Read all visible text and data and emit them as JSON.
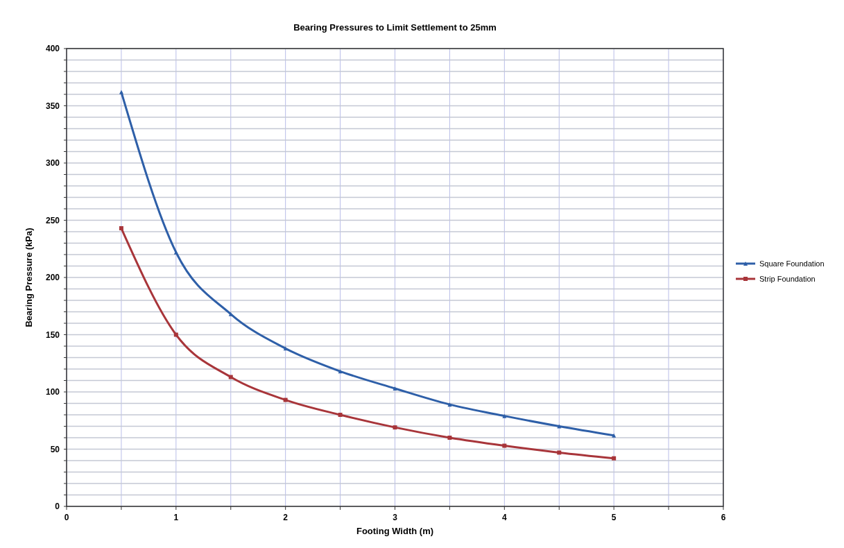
{
  "chart_data": {
    "type": "line",
    "title": "Bearing Pressures to Limit Settlement to 25mm",
    "xlabel": "Footing Width (m)",
    "ylabel": "Bearing Pressure (kPa)",
    "x": [
      0.5,
      1,
      1.5,
      2,
      2.5,
      3,
      3.5,
      4,
      4.5,
      5
    ],
    "series": [
      {
        "name": "Square Foundation",
        "color": "#2e5fa8",
        "marker": "triangle",
        "values": [
          362,
          222,
          168,
          138,
          118,
          103,
          89,
          79,
          70,
          62
        ]
      },
      {
        "name": "Strip Foundation",
        "color": "#a8353a",
        "marker": "square",
        "values": [
          243,
          150,
          113,
          93,
          80,
          69,
          60,
          53,
          47,
          42
        ]
      }
    ],
    "xlim": [
      0,
      6
    ],
    "xticks": [
      0,
      {
        "value": 0.5,
        "label": null
      },
      1,
      {
        "value": 1.5,
        "label": null
      },
      2,
      {
        "value": 2.5,
        "label": null
      },
      3,
      {
        "value": 3.5,
        "label": null
      },
      4,
      {
        "value": 4.5,
        "label": null
      },
      5,
      {
        "value": 5.5,
        "label": null
      },
      6
    ],
    "ylim": [
      0,
      400
    ],
    "yticks": [
      0,
      {
        "value": 10,
        "label": null
      },
      {
        "value": 20,
        "label": null
      },
      {
        "value": 30,
        "label": null
      },
      {
        "value": 40,
        "label": null
      },
      50,
      {
        "value": 60,
        "label": null
      },
      {
        "value": 70,
        "label": null
      },
      {
        "value": 80,
        "label": null
      },
      {
        "value": 90,
        "label": null
      },
      100,
      {
        "value": 110,
        "label": null
      },
      {
        "value": 120,
        "label": null
      },
      {
        "value": 130,
        "label": null
      },
      {
        "value": 140,
        "label": null
      },
      150,
      {
        "value": 160,
        "label": null
      },
      {
        "value": 170,
        "label": null
      },
      {
        "value": 180,
        "label": null
      },
      {
        "value": 190,
        "label": null
      },
      200,
      {
        "value": 210,
        "label": null
      },
      {
        "value": 220,
        "label": null
      },
      {
        "value": 230,
        "label": null
      },
      {
        "value": 240,
        "label": null
      },
      250,
      {
        "value": 260,
        "label": null
      },
      {
        "value": 270,
        "label": null
      },
      {
        "value": 280,
        "label": null
      },
      {
        "value": 290,
        "label": null
      },
      300,
      {
        "value": 310,
        "label": null
      },
      {
        "value": 320,
        "label": null
      },
      {
        "value": 330,
        "label": null
      },
      {
        "value": 340,
        "label": null
      },
      350,
      {
        "value": 360,
        "label": null
      },
      {
        "value": 370,
        "label": null
      },
      {
        "value": 380,
        "label": null
      },
      {
        "value": 390,
        "label": null
      },
      400
    ],
    "grid": true,
    "legend": "right",
    "line_style": "solid"
  }
}
